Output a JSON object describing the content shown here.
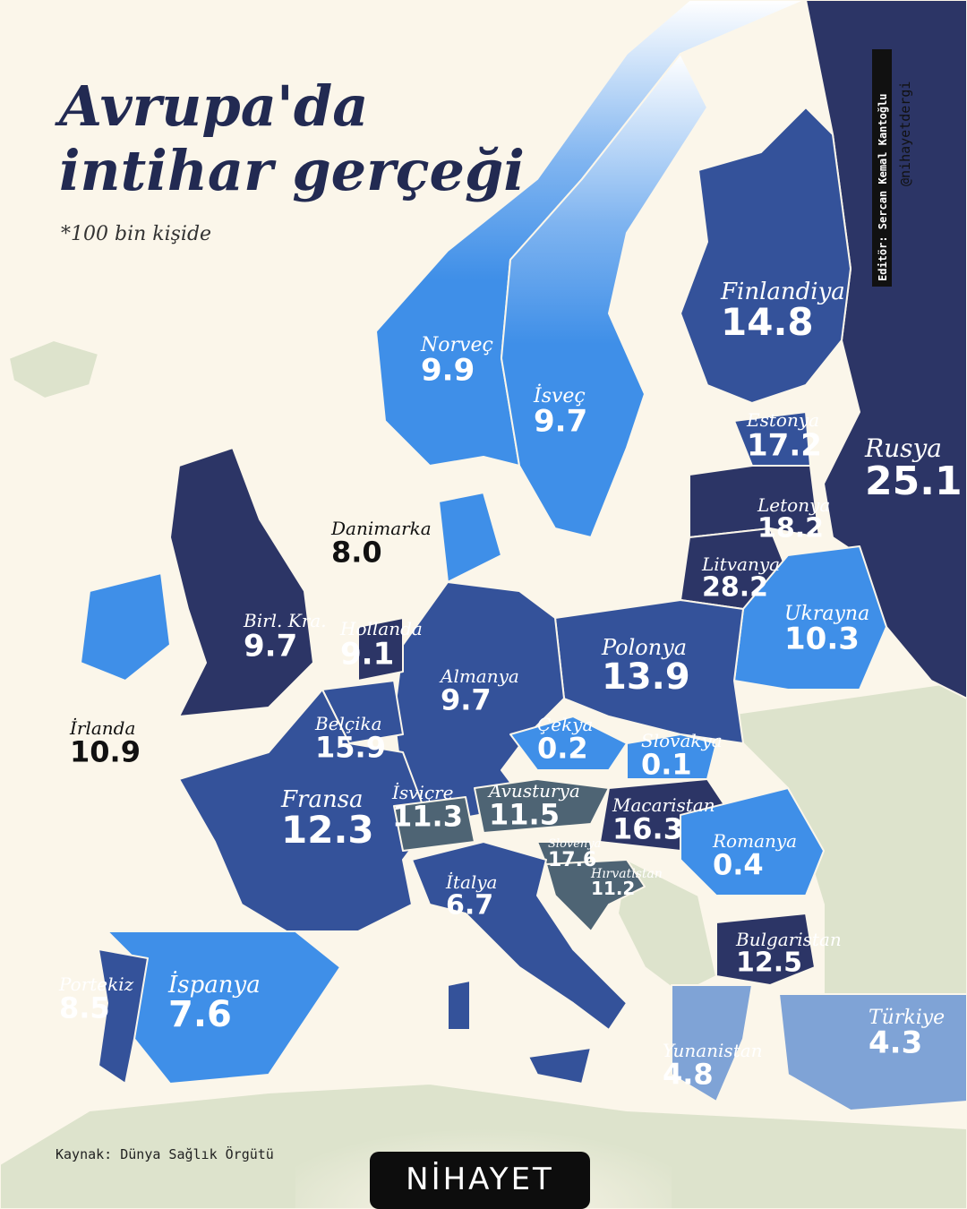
{
  "title": [
    "Avrupa'da",
    "intihar gerçeği"
  ],
  "subtitle": "*100 bin kişide",
  "editor": "Editör: Sercan Kemal Kantoğlu",
  "handle": "@nihayetdergi",
  "source": "Kaynak: Dünya Sağlık Örgütü",
  "brand": "NİHAYET",
  "countries": [
    {
      "name": "Norveç",
      "value": "9.9"
    },
    {
      "name": "İsveç",
      "value": "9.7"
    },
    {
      "name": "Finlandiya",
      "value": "14.8"
    },
    {
      "name": "Estonya",
      "value": "17.2"
    },
    {
      "name": "Rusya",
      "value": "25.1"
    },
    {
      "name": "Letonya",
      "value": "18.2"
    },
    {
      "name": "Litvanya",
      "value": "28.2"
    },
    {
      "name": "Danimarka",
      "value": "8.0"
    },
    {
      "name": "Ukrayna",
      "value": "10.3"
    },
    {
      "name": "Birl. Kra.",
      "value": "9.7"
    },
    {
      "name": "Hollanda",
      "value": "9.1"
    },
    {
      "name": "Polonya",
      "value": "13.9"
    },
    {
      "name": "Almanya",
      "value": "9.7"
    },
    {
      "name": "İrlanda",
      "value": "10.9"
    },
    {
      "name": "Belçika",
      "value": "15.9"
    },
    {
      "name": "Çekya",
      "value": "0.2"
    },
    {
      "name": "Slovakya",
      "value": "0.1"
    },
    {
      "name": "Fransa",
      "value": "12.3"
    },
    {
      "name": "İsviçre",
      "value": "11.3"
    },
    {
      "name": "Avusturya",
      "value": "11.5"
    },
    {
      "name": "Macaristan",
      "value": "16.3"
    },
    {
      "name": "Romanya",
      "value": "0.4"
    },
    {
      "name": "Slovenya",
      "value": "17.6"
    },
    {
      "name": "Hırvatistan",
      "value": "11.2"
    },
    {
      "name": "İtalya",
      "value": "6.7"
    },
    {
      "name": "Bulgaristan",
      "value": "12.5"
    },
    {
      "name": "Portekiz",
      "value": "8.5"
    },
    {
      "name": "İspanya",
      "value": "7.6"
    },
    {
      "name": "Türkiye",
      "value": "4.3"
    },
    {
      "name": "Yunanistan",
      "value": "4.8"
    }
  ]
}
